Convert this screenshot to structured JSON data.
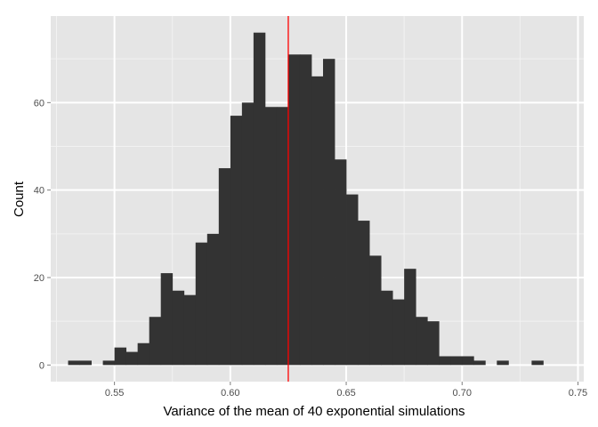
{
  "chart_data": {
    "type": "bar",
    "xlabel": "Variance of the mean of 40 exponential simulations",
    "ylabel": "Count",
    "xlim": [
      0.5225,
      0.7525
    ],
    "ylim": [
      -3.8,
      79.8
    ],
    "x_ticks": [
      0.55,
      0.6,
      0.65,
      0.7,
      0.75
    ],
    "x_tick_labels": [
      "0.55",
      "0.60",
      "0.65",
      "0.70",
      "0.75"
    ],
    "y_ticks": [
      0,
      20,
      40,
      60
    ],
    "y_tick_labels": [
      "0",
      "20",
      "40",
      "60"
    ],
    "bin_width": 0.005,
    "bin_starts": [
      0.53,
      0.535,
      0.54,
      0.545,
      0.55,
      0.555,
      0.56,
      0.565,
      0.57,
      0.575,
      0.58,
      0.585,
      0.59,
      0.595,
      0.6,
      0.605,
      0.61,
      0.615,
      0.62,
      0.625,
      0.63,
      0.635,
      0.64,
      0.645,
      0.65,
      0.655,
      0.66,
      0.665,
      0.67,
      0.675,
      0.68,
      0.685,
      0.69,
      0.695,
      0.7,
      0.705,
      0.71,
      0.715,
      0.72,
      0.725,
      0.73
    ],
    "counts": [
      1,
      1,
      0,
      1,
      4,
      3,
      5,
      11,
      21,
      17,
      16,
      28,
      30,
      45,
      57,
      60,
      76,
      59,
      59,
      71,
      71,
      66,
      70,
      47,
      39,
      33,
      25,
      17,
      15,
      22,
      11,
      10,
      2,
      2,
      2,
      1,
      0,
      1,
      0,
      0,
      1
    ],
    "vline_x": 0.625,
    "colors": {
      "panel_bg": "#e5e5e5",
      "grid_major": "#ffffff",
      "grid_minor": "#f2f2f2",
      "bar_fill": "#333333",
      "vline": "#ff0000"
    },
    "grid": true,
    "legend": "none"
  }
}
